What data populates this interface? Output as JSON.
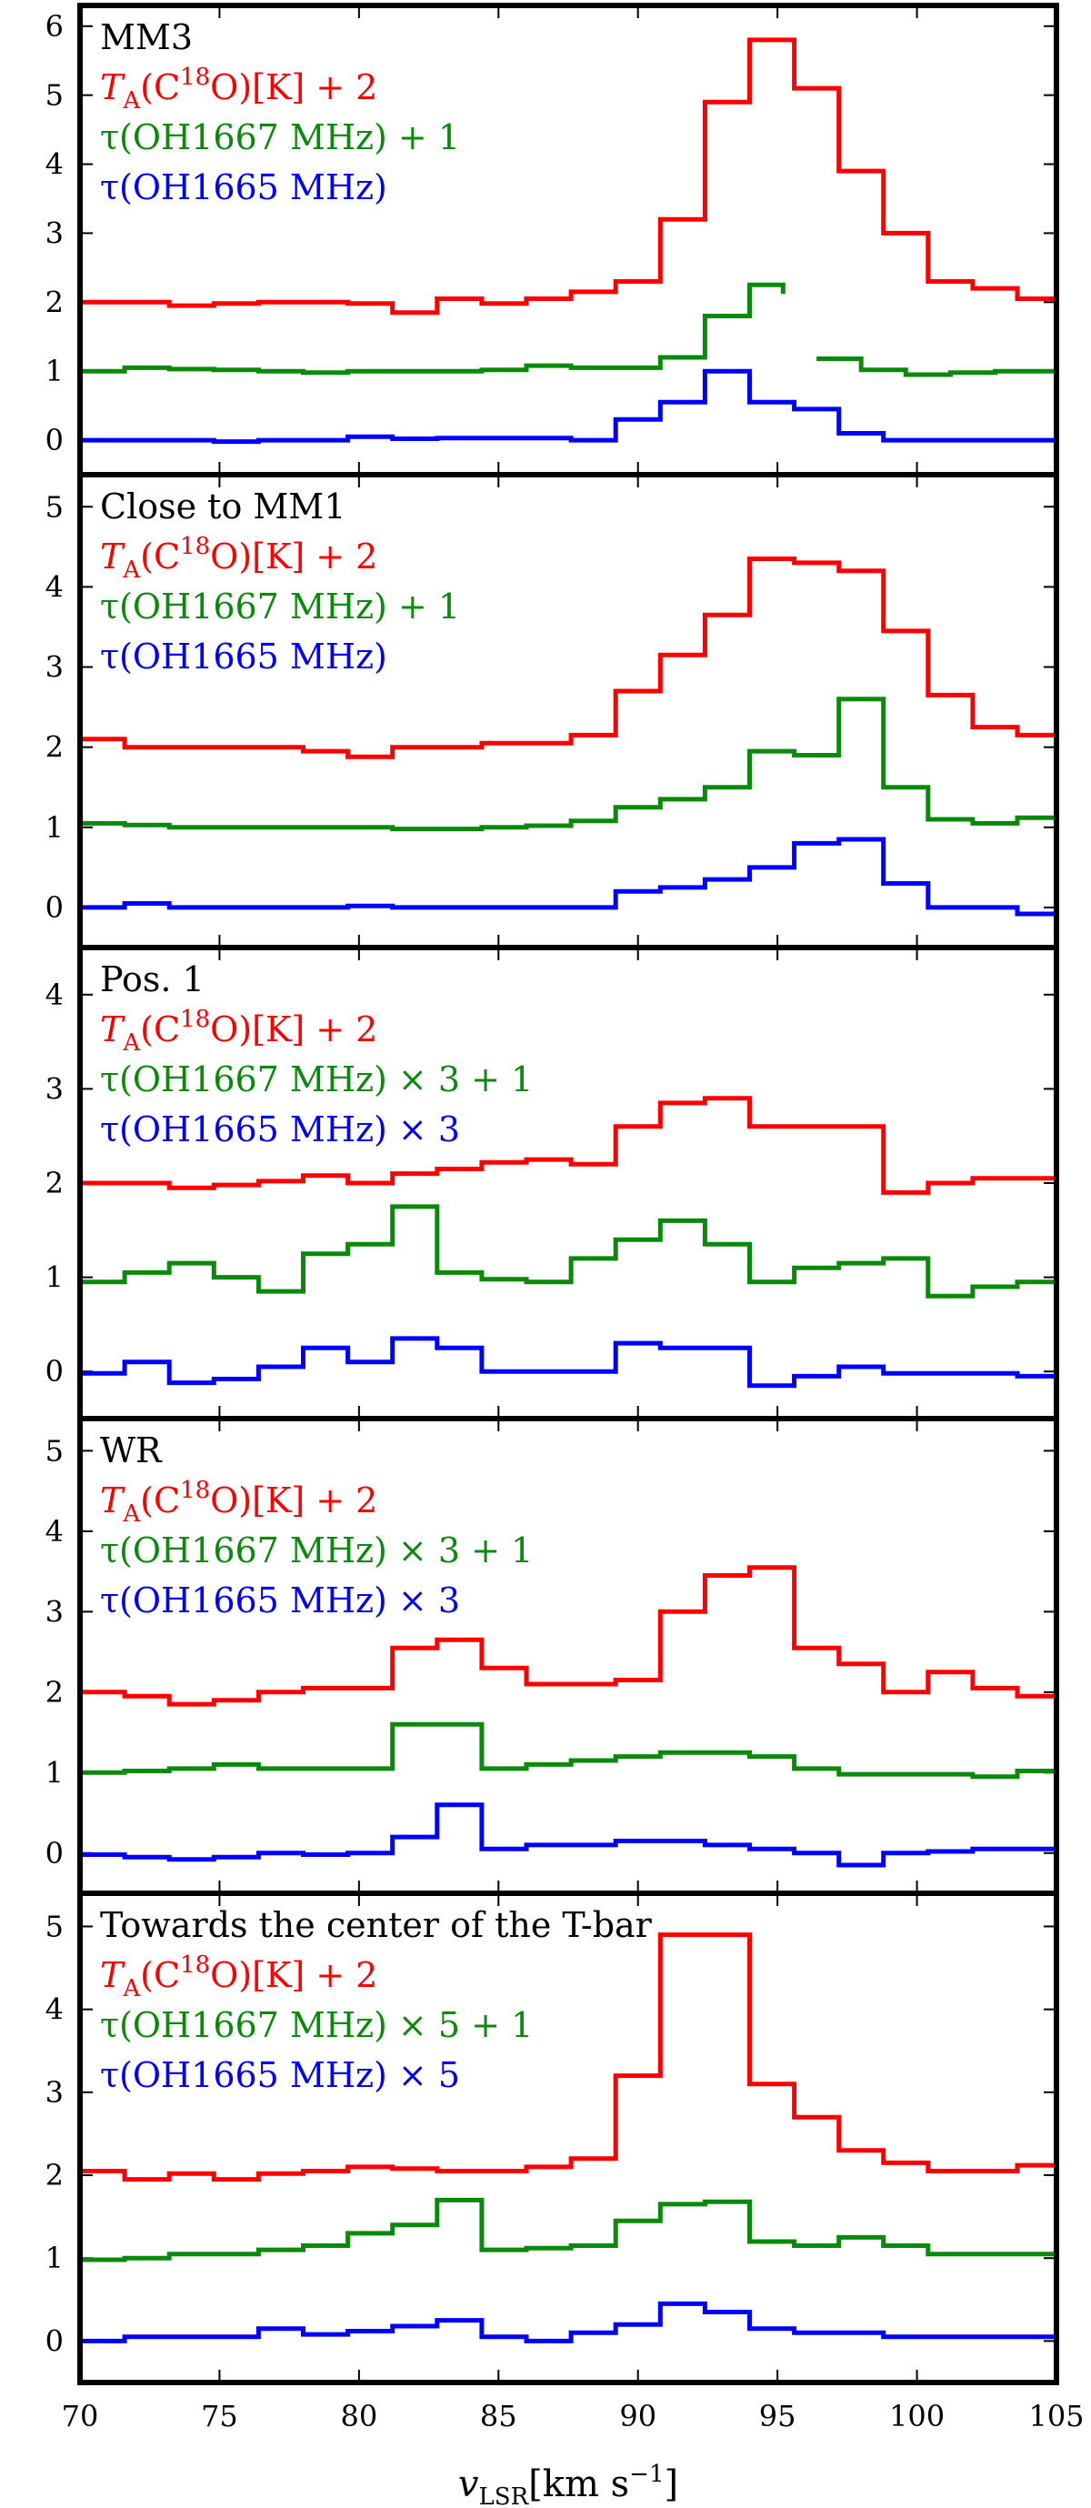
{
  "chart_data": {
    "type": "line",
    "step": true,
    "shared_x_axis": {
      "label_symbol": "v",
      "label_sub": "LSR",
      "label_unit": "[km s",
      "label_unit_sup": "−1",
      "label_unit_close": "]",
      "xlim": [
        70,
        105
      ],
      "ticks": [
        70,
        75,
        80,
        85,
        90,
        95,
        100,
        105
      ],
      "tick_labels": [
        "70",
        "75",
        "80",
        "85",
        "90",
        "95",
        "100",
        "105"
      ]
    },
    "colors": {
      "red": "#ff0000",
      "green": "#0a8a0a",
      "blue": "#0000ff"
    },
    "panels": [
      {
        "title": "MM3",
        "ylim": [
          -0.5,
          6.3
        ],
        "yticks": [
          0,
          1,
          2,
          3,
          4,
          5,
          6
        ],
        "ytick_labels": [
          "0",
          "1",
          "2",
          "3",
          "4",
          "5",
          "6"
        ],
        "series": [
          {
            "legend": {
              "sym": "T",
              "sub": "A",
              "pre": "(C",
              "sup": "18",
              "post": "O)[K] + 2"
            },
            "color": "red",
            "x": [
              70,
              71.6,
              73.2,
              74.8,
              76.4,
              78.0,
              79.6,
              81.2,
              82.8,
              84.4,
              86.0,
              87.6,
              89.2,
              90.8,
              92.4,
              94.0,
              95.6,
              97.2,
              98.8,
              100.4,
              102.0,
              103.6,
              105
            ],
            "y": [
              2.0,
              2.0,
              1.95,
              1.98,
              2.0,
              2.0,
              1.98,
              1.85,
              2.05,
              1.98,
              2.05,
              2.15,
              2.3,
              3.2,
              4.9,
              5.8,
              5.1,
              3.9,
              3.0,
              2.3,
              2.2,
              2.05,
              2.05
            ]
          },
          {
            "legend": {
              "pre": "τ(OH1667 MHz) + 1"
            },
            "color": "green",
            "x": [
              70,
              71.6,
              73.2,
              74.8,
              76.4,
              78.0,
              79.6,
              81.2,
              82.8,
              84.4,
              86.0,
              87.6,
              89.2,
              90.8,
              92.4,
              94.0,
              95.2
            ],
            "y": [
              1.0,
              1.05,
              1.03,
              1.02,
              1.0,
              0.98,
              1.0,
              1.0,
              1.0,
              1.02,
              1.08,
              1.05,
              1.05,
              1.2,
              1.8,
              2.25,
              2.12
            ],
            "x2": [
              96.4,
              98.0,
              99.6,
              101.2,
              102.8,
              104.4,
              105
            ],
            "y2": [
              1.18,
              1.02,
              0.95,
              0.98,
              1.0,
              1.0,
              1.0
            ]
          },
          {
            "legend": {
              "pre": "τ(OH1665 MHz)"
            },
            "color": "blue",
            "x": [
              70,
              71.6,
              73.2,
              74.8,
              76.4,
              78.0,
              79.6,
              81.2,
              82.8,
              84.4,
              86.0,
              87.6,
              89.2,
              90.8,
              92.4,
              94.0,
              95.6,
              97.2,
              98.8,
              100.4,
              102.0,
              103.6,
              105
            ],
            "y": [
              0.0,
              0.0,
              0.0,
              -0.02,
              0.0,
              0.0,
              0.05,
              0.02,
              0.03,
              0.03,
              0.03,
              0.0,
              0.3,
              0.55,
              1.0,
              0.55,
              0.45,
              0.1,
              0.0,
              0.0,
              0.0,
              0.0,
              0.0
            ]
          }
        ]
      },
      {
        "title": "Close to MM1",
        "ylim": [
          -0.5,
          5.4
        ],
        "yticks": [
          0,
          1,
          2,
          3,
          4,
          5
        ],
        "ytick_labels": [
          "0",
          "1",
          "2",
          "3",
          "4",
          "5"
        ],
        "series": [
          {
            "legend": {
              "sym": "T",
              "sub": "A",
              "pre": "(C",
              "sup": "18",
              "post": "O)[K] + 2"
            },
            "color": "red",
            "x": [
              70,
              71.6,
              73.2,
              74.8,
              76.4,
              78.0,
              79.6,
              81.2,
              82.8,
              84.4,
              86.0,
              87.6,
              89.2,
              90.8,
              92.4,
              94.0,
              95.6,
              97.2,
              98.8,
              100.4,
              102.0,
              103.6,
              105
            ],
            "y": [
              2.1,
              2.0,
              2.0,
              2.0,
              2.0,
              1.95,
              1.88,
              2.0,
              2.0,
              2.05,
              2.05,
              2.15,
              2.7,
              3.15,
              3.65,
              4.35,
              4.3,
              4.2,
              3.45,
              2.65,
              2.25,
              2.15,
              2.0
            ]
          },
          {
            "legend": {
              "pre": "τ(OH1667 MHz) + 1"
            },
            "color": "green",
            "x": [
              70,
              71.6,
              73.2,
              74.8,
              76.4,
              78.0,
              79.6,
              81.2,
              82.8,
              84.4,
              86.0,
              87.6,
              89.2,
              90.8,
              92.4,
              94.0,
              95.6,
              97.2,
              98.8,
              100.4,
              102.0,
              103.6,
              105
            ],
            "y": [
              1.05,
              1.03,
              1.0,
              1.0,
              1.0,
              1.0,
              1.0,
              0.98,
              0.98,
              1.0,
              1.02,
              1.08,
              1.25,
              1.35,
              1.5,
              1.95,
              1.9,
              2.6,
              1.5,
              1.1,
              1.05,
              1.12,
              1.1
            ]
          },
          {
            "legend": {
              "pre": "τ(OH1665 MHz)"
            },
            "color": "blue",
            "x": [
              70,
              71.6,
              73.2,
              74.8,
              76.4,
              78.0,
              79.6,
              81.2,
              82.8,
              84.4,
              86.0,
              87.6,
              89.2,
              90.8,
              92.4,
              94.0,
              95.6,
              97.2,
              98.8,
              100.4,
              102.0,
              103.6,
              105
            ],
            "y": [
              0.0,
              0.05,
              0.0,
              0.0,
              0.0,
              0.0,
              0.02,
              0.0,
              0.0,
              0.0,
              0.0,
              0.0,
              0.2,
              0.25,
              0.35,
              0.5,
              0.8,
              0.85,
              0.3,
              0.0,
              0.0,
              -0.08,
              0.0
            ]
          }
        ]
      },
      {
        "title": "Pos. 1",
        "ylim": [
          -0.5,
          4.5
        ],
        "yticks": [
          0,
          1,
          2,
          3,
          4
        ],
        "ytick_labels": [
          "0",
          "1",
          "2",
          "3",
          "4"
        ],
        "series": [
          {
            "legend": {
              "sym": "T",
              "sub": "A",
              "pre": "(C",
              "sup": "18",
              "post": "O)[K] + 2"
            },
            "color": "red",
            "x": [
              70,
              71.6,
              73.2,
              74.8,
              76.4,
              78.0,
              79.6,
              81.2,
              82.8,
              84.4,
              86.0,
              87.6,
              89.2,
              90.8,
              92.4,
              94.0,
              95.6,
              97.2,
              98.8,
              100.4,
              102.0,
              103.6,
              105
            ],
            "y": [
              2.0,
              2.0,
              1.95,
              1.98,
              2.02,
              2.08,
              2.0,
              2.1,
              2.15,
              2.22,
              2.25,
              2.2,
              2.6,
              2.85,
              2.9,
              2.6,
              2.6,
              2.6,
              1.9,
              2.0,
              2.05,
              2.05,
              2.05
            ]
          },
          {
            "legend": {
              "pre": "τ(OH1667 MHz) × 3 + 1"
            },
            "color": "green",
            "x": [
              70,
              71.6,
              73.2,
              74.8,
              76.4,
              78.0,
              79.6,
              81.2,
              82.8,
              84.4,
              86.0,
              87.6,
              89.2,
              90.8,
              92.4,
              94.0,
              95.6,
              97.2,
              98.8,
              100.4,
              102.0,
              103.6,
              105
            ],
            "y": [
              0.95,
              1.05,
              1.15,
              1.0,
              0.85,
              1.25,
              1.35,
              1.75,
              1.05,
              0.98,
              0.95,
              1.2,
              1.4,
              1.6,
              1.35,
              0.95,
              1.1,
              1.15,
              1.2,
              0.8,
              0.9,
              0.95,
              1.0
            ]
          },
          {
            "legend": {
              "pre": "τ(OH1665 MHz) × 3"
            },
            "color": "blue",
            "x": [
              70,
              71.6,
              73.2,
              74.8,
              76.4,
              78.0,
              79.6,
              81.2,
              82.8,
              84.4,
              86.0,
              87.6,
              89.2,
              90.8,
              92.4,
              94.0,
              95.6,
              97.2,
              98.8,
              100.4,
              102.0,
              103.6,
              105
            ],
            "y": [
              -0.02,
              0.1,
              -0.12,
              -0.08,
              0.05,
              0.25,
              0.1,
              0.35,
              0.25,
              0.0,
              0.0,
              0.0,
              0.3,
              0.25,
              0.25,
              -0.15,
              -0.05,
              0.05,
              -0.02,
              -0.02,
              -0.02,
              -0.05,
              0.0
            ]
          }
        ]
      },
      {
        "title": "WR",
        "ylim": [
          -0.5,
          5.4
        ],
        "yticks": [
          0,
          1,
          2,
          3,
          4,
          5
        ],
        "ytick_labels": [
          "0",
          "1",
          "2",
          "3",
          "4",
          "5"
        ],
        "series": [
          {
            "legend": {
              "sym": "T",
              "sub": "A",
              "pre": "(C",
              "sup": "18",
              "post": "O)[K] + 2"
            },
            "color": "red",
            "x": [
              70,
              71.6,
              73.2,
              74.8,
              76.4,
              78.0,
              79.6,
              81.2,
              82.8,
              84.4,
              86.0,
              87.6,
              89.2,
              90.8,
              92.4,
              94.0,
              95.6,
              97.2,
              98.8,
              100.4,
              102.0,
              103.6,
              105
            ],
            "y": [
              2.0,
              1.95,
              1.85,
              1.9,
              2.0,
              2.05,
              2.05,
              2.55,
              2.65,
              2.3,
              2.1,
              2.1,
              2.15,
              3.0,
              3.45,
              3.55,
              2.55,
              2.35,
              2.0,
              2.25,
              2.05,
              1.95,
              1.95
            ]
          },
          {
            "legend": {
              "pre": "τ(OH1667 MHz) × 3 + 1"
            },
            "color": "green",
            "x": [
              70,
              71.6,
              73.2,
              74.8,
              76.4,
              78.0,
              79.6,
              81.2,
              82.8,
              84.4,
              86.0,
              87.6,
              89.2,
              90.8,
              92.4,
              94.0,
              95.6,
              97.2,
              98.8,
              100.4,
              102.0,
              103.6,
              105
            ],
            "y": [
              1.0,
              1.02,
              1.05,
              1.1,
              1.05,
              1.05,
              1.05,
              1.6,
              1.6,
              1.05,
              1.1,
              1.15,
              1.2,
              1.25,
              1.25,
              1.2,
              1.05,
              0.98,
              0.98,
              0.98,
              0.95,
              1.02,
              1.1
            ]
          },
          {
            "legend": {
              "pre": "τ(OH1665 MHz) × 3"
            },
            "color": "blue",
            "x": [
              70,
              71.6,
              73.2,
              74.8,
              76.4,
              78.0,
              79.6,
              81.2,
              82.8,
              84.4,
              86.0,
              87.6,
              89.2,
              90.8,
              92.4,
              94.0,
              95.6,
              97.2,
              98.8,
              100.4,
              102.0,
              103.6,
              105
            ],
            "y": [
              -0.02,
              -0.05,
              -0.08,
              -0.05,
              0.0,
              -0.02,
              0.0,
              0.2,
              0.6,
              0.05,
              0.1,
              0.1,
              0.15,
              0.15,
              0.1,
              0.05,
              0.0,
              -0.15,
              0.0,
              0.02,
              0.05,
              0.05,
              0.1
            ]
          }
        ]
      },
      {
        "title": "Towards the center of the T-bar",
        "ylim": [
          -0.5,
          5.4
        ],
        "yticks": [
          0,
          1,
          2,
          3,
          4,
          5
        ],
        "ytick_labels": [
          "0",
          "1",
          "2",
          "3",
          "4",
          "5"
        ],
        "series": [
          {
            "legend": {
              "sym": "T",
              "sub": "A",
              "pre": "(C",
              "sup": "18",
              "post": "O)[K] + 2"
            },
            "color": "red",
            "x": [
              70,
              71.6,
              73.2,
              74.8,
              76.4,
              78.0,
              79.6,
              81.2,
              82.8,
              84.4,
              86.0,
              87.6,
              89.2,
              90.8,
              92.4,
              94.0,
              95.6,
              97.2,
              98.8,
              100.4,
              102.0,
              103.6,
              105
            ],
            "y": [
              2.05,
              1.95,
              2.02,
              1.95,
              2.02,
              2.05,
              2.1,
              2.08,
              2.05,
              2.05,
              2.1,
              2.2,
              3.2,
              4.9,
              4.9,
              3.1,
              2.7,
              2.3,
              2.15,
              2.05,
              2.05,
              2.12,
              2.05
            ]
          },
          {
            "legend": {
              "pre": "τ(OH1667 MHz) × 5 + 1"
            },
            "color": "green",
            "x": [
              70,
              71.6,
              73.2,
              74.8,
              76.4,
              78.0,
              79.6,
              81.2,
              82.8,
              84.4,
              86.0,
              87.6,
              89.2,
              90.8,
              92.4,
              94.0,
              95.6,
              97.2,
              98.8,
              100.4,
              102.0,
              103.6,
              105
            ],
            "y": [
              0.98,
              1.0,
              1.05,
              1.05,
              1.1,
              1.15,
              1.3,
              1.4,
              1.7,
              1.1,
              1.12,
              1.15,
              1.45,
              1.65,
              1.68,
              1.2,
              1.15,
              1.25,
              1.15,
              1.05,
              1.05,
              1.05,
              1.0
            ]
          },
          {
            "legend": {
              "pre": "τ(OH1665 MHz) × 5"
            },
            "color": "blue",
            "x": [
              70,
              71.6,
              73.2,
              74.8,
              76.4,
              78.0,
              79.6,
              81.2,
              82.8,
              84.4,
              86.0,
              87.6,
              89.2,
              90.8,
              92.4,
              94.0,
              95.6,
              97.2,
              98.8,
              100.4,
              102.0,
              103.6,
              105
            ],
            "y": [
              0.0,
              0.05,
              0.05,
              0.05,
              0.15,
              0.08,
              0.12,
              0.18,
              0.25,
              0.05,
              0.0,
              0.1,
              0.2,
              0.45,
              0.35,
              0.15,
              0.1,
              0.1,
              0.05,
              0.05,
              0.05,
              0.05,
              0.0
            ]
          }
        ]
      }
    ]
  }
}
